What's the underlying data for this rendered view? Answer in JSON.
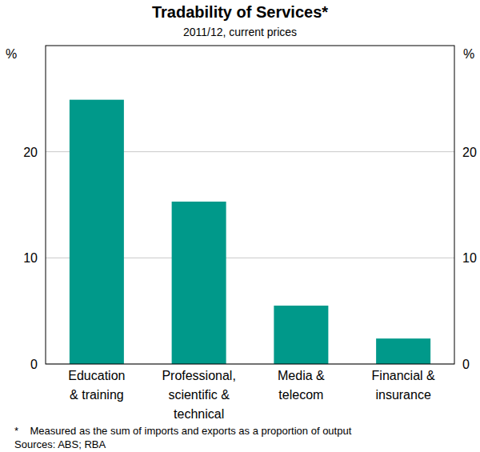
{
  "chart_data": {
    "type": "bar",
    "title": "Tradability of Services*",
    "subtitle": "2011/12, current prices",
    "y_label": "%",
    "categories": [
      "Education\n& training",
      "Professional,\nscientific &\ntechnical",
      "Media &\ntelecom",
      "Financial &\ninsurance"
    ],
    "values": [
      24.9,
      15.3,
      5.5,
      2.4
    ],
    "color": "#00998a",
    "ylim": [
      0,
      30
    ],
    "yticks": [
      0,
      10,
      20
    ],
    "grid": true,
    "footnote": "*    Measured as the sum of imports and exports as a proportion of output",
    "sources": "Sources: ABS; RBA"
  }
}
